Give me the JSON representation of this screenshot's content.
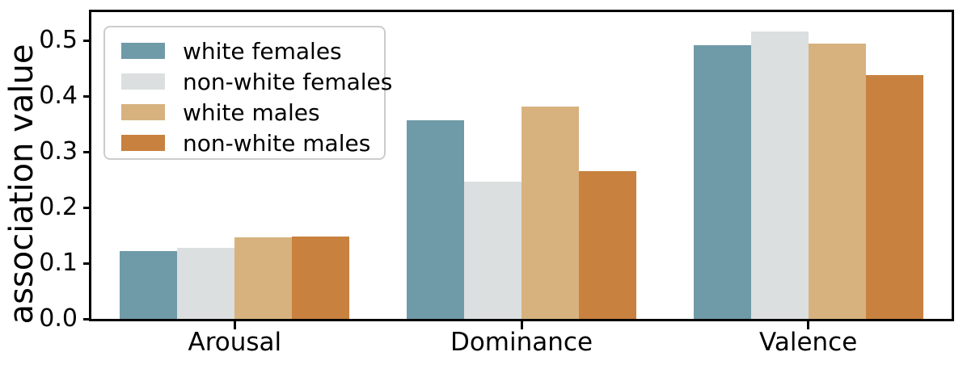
{
  "chart_data": {
    "type": "bar",
    "title": "",
    "xlabel": "",
    "ylabel": "association value",
    "categories": [
      "Arousal",
      "Dominance",
      "Valence"
    ],
    "series": [
      {
        "name": "white females",
        "color": "#6f9aa8",
        "values": [
          0.122,
          0.356,
          0.492
        ]
      },
      {
        "name": "non-white females",
        "color": "#dbdfe0",
        "values": [
          0.127,
          0.246,
          0.516
        ]
      },
      {
        "name": "white males",
        "color": "#d7b27f",
        "values": [
          0.147,
          0.382,
          0.494
        ]
      },
      {
        "name": "non-white males",
        "color": "#c8813f",
        "values": [
          0.148,
          0.266,
          0.438
        ]
      }
    ],
    "yticks": [
      0.0,
      0.1,
      0.2,
      0.3,
      0.4,
      0.5
    ],
    "ytick_labels": [
      "0.0",
      "0.1",
      "0.2",
      "0.3",
      "0.4",
      "0.5"
    ],
    "ylim": [
      0,
      0.551
    ],
    "grid": false,
    "legend_position": "upper left",
    "spine_color": "#000000",
    "legend_border_color": "#cccccc",
    "background_color": "#ffffff"
  }
}
